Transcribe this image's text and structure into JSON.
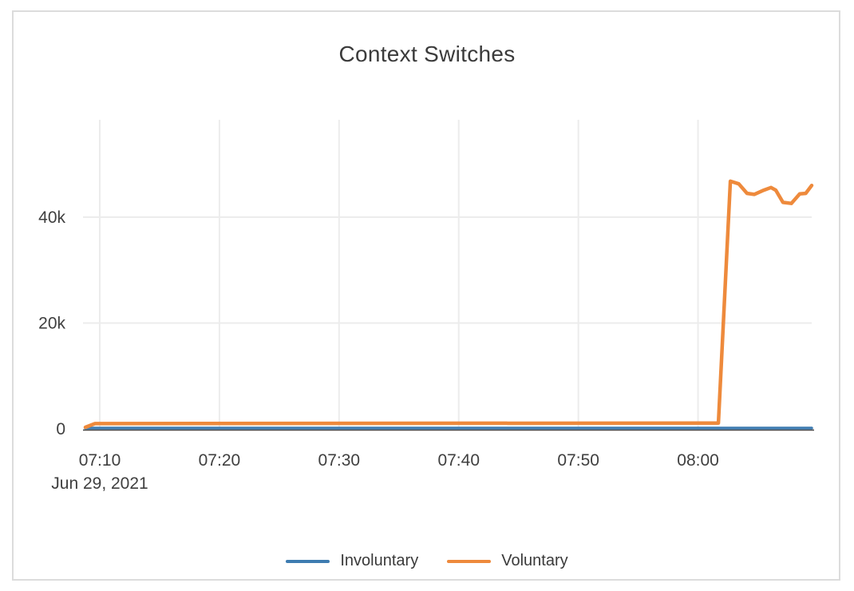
{
  "card": {
    "title": "Context Switches"
  },
  "colors": {
    "involuntary": "#3e7cb1",
    "voluntary": "#ee8a3c",
    "grid": "#ececec",
    "axis_line": "#444444",
    "tick_text": "#3f3f3f",
    "title_text": "#3b3b3b",
    "card_border": "#dcdcdc"
  },
  "legend": [
    {
      "name": "Involuntary",
      "color": "#3e7cb1"
    },
    {
      "name": "Voluntary",
      "color": "#ee8a3c"
    }
  ],
  "chart_data": {
    "type": "line",
    "title": "Context Switches",
    "x_axis": {
      "tick_labels": [
        "07:10",
        "07:20",
        "07:30",
        "07:40",
        "07:50",
        "08:00"
      ],
      "tick_minutes": [
        10,
        20,
        30,
        40,
        50,
        60
      ],
      "date_label": "Jun 29, 2021",
      "range_minutes": [
        8.8,
        69.5
      ]
    },
    "y_axis": {
      "tick_labels": [
        "0",
        "20k",
        "40k"
      ],
      "tick_values": [
        0,
        20000,
        40000
      ],
      "range": [
        0,
        58400
      ],
      "grid": true
    },
    "legend_position": "bottom",
    "series": [
      {
        "name": "Involuntary",
        "color": "#3e7cb1",
        "points": [
          [
            8.8,
            150
          ],
          [
            69.5,
            150
          ]
        ]
      },
      {
        "name": "Voluntary",
        "color": "#ee8a3c",
        "points": [
          [
            8.8,
            300
          ],
          [
            9.6,
            1000
          ],
          [
            61.7,
            1100
          ],
          [
            62.7,
            46800
          ],
          [
            63.4,
            46300
          ],
          [
            64.1,
            44500
          ],
          [
            64.7,
            44300
          ],
          [
            65.5,
            45100
          ],
          [
            66.1,
            45600
          ],
          [
            66.5,
            45100
          ],
          [
            67.1,
            42800
          ],
          [
            67.8,
            42600
          ],
          [
            68.5,
            44400
          ],
          [
            69.0,
            44500
          ],
          [
            69.5,
            46000
          ]
        ]
      }
    ]
  }
}
